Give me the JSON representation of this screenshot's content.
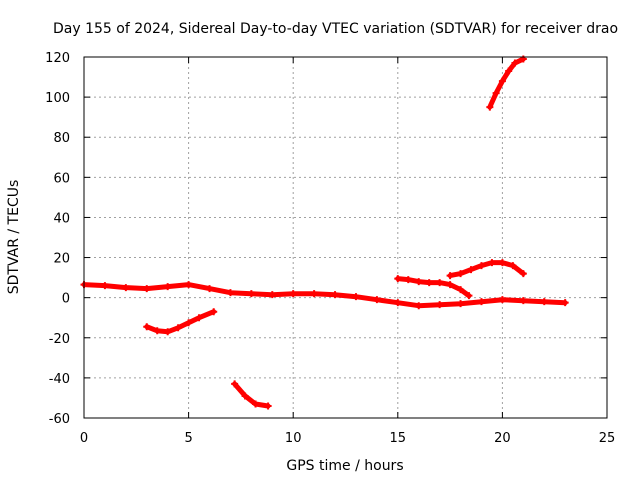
{
  "chart_data": {
    "type": "scatter",
    "title": "Day 155 of 2024, Sidereal Day-to-day VTEC variation (SDTVAR) for receiver drao",
    "xlabel": "GPS time / hours",
    "ylabel": "SDTVAR / TECUs",
    "xlim": [
      0,
      25
    ],
    "ylim": [
      -60,
      120
    ],
    "xticks": [
      "0",
      "5",
      "10",
      "15",
      "20",
      "25"
    ],
    "yticks": [
      "-60",
      "-40",
      "-20",
      "0",
      "20",
      "40",
      "60",
      "80",
      "100",
      "120"
    ],
    "grid": true,
    "color": "#ff0000",
    "series": [
      {
        "name": "track-1",
        "x": [
          0,
          1,
          2,
          3,
          4,
          5,
          6,
          7,
          8,
          9,
          10,
          11,
          12,
          13,
          14,
          15,
          16,
          17,
          18,
          19,
          20,
          21,
          22,
          23
        ],
        "y": [
          6.5,
          6,
          5,
          4.5,
          5.5,
          6.5,
          4.5,
          2.5,
          2,
          1.5,
          2,
          2,
          1.5,
          0.5,
          -1,
          -2.5,
          -4,
          -3.5,
          -3,
          -2,
          -1,
          -1.5,
          -2,
          -2.5
        ]
      },
      {
        "name": "track-2",
        "x": [
          3,
          3.5,
          4,
          4.5,
          5,
          5.5,
          6.2
        ],
        "y": [
          -14.5,
          -16.5,
          -17,
          -15,
          -12.5,
          -10,
          -7
        ]
      },
      {
        "name": "track-3",
        "x": [
          7.2,
          7.7,
          8.2,
          8.8
        ],
        "y": [
          -43,
          -49,
          -53,
          -54
        ]
      },
      {
        "name": "track-4",
        "x": [
          15,
          15.5,
          16,
          16.5,
          17,
          17.5,
          18,
          18.4
        ],
        "y": [
          9.5,
          9,
          8,
          7.5,
          7.5,
          6.5,
          4,
          1
        ]
      },
      {
        "name": "track-5",
        "x": [
          17.5,
          18,
          18.5,
          19,
          19.5,
          20,
          20.5,
          21
        ],
        "y": [
          11,
          12,
          14,
          16,
          17.5,
          17.5,
          16,
          12
        ]
      },
      {
        "name": "track-6",
        "x": [
          19.4,
          19.7,
          20,
          20.3,
          20.6,
          21
        ],
        "y": [
          95,
          102,
          108,
          113,
          117,
          119
        ]
      }
    ]
  }
}
